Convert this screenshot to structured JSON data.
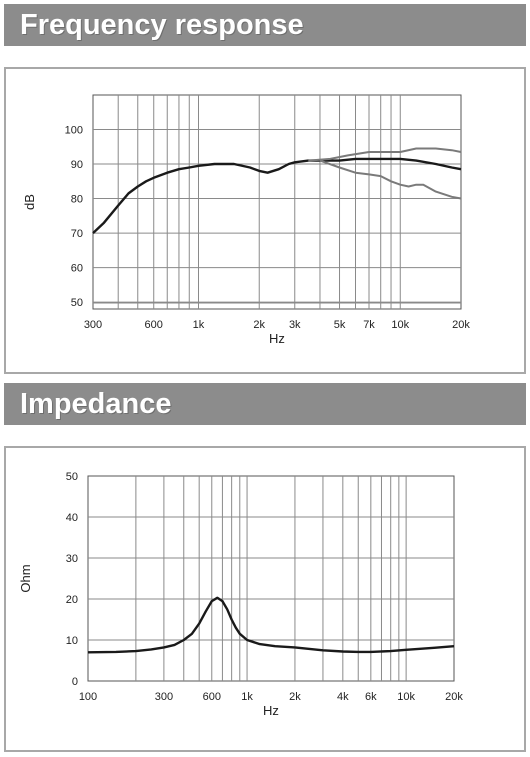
{
  "sections": {
    "frequency": {
      "title": "Frequency response"
    },
    "impedance": {
      "title": "Impedance"
    }
  },
  "chart_data": [
    {
      "type": "line",
      "title": "Frequency response",
      "xlabel": "Hz",
      "ylabel": "dB",
      "xscale": "log",
      "xlim": [
        300,
        20000
      ],
      "ylim": [
        48,
        110
      ],
      "grid": true,
      "legend": "none",
      "x_tick_labels": [
        {
          "value": 300,
          "label": "300"
        },
        {
          "value": 600,
          "label": "600"
        },
        {
          "value": 1000,
          "label": "1k"
        },
        {
          "value": 2000,
          "label": "2k"
        },
        {
          "value": 3000,
          "label": "3k"
        },
        {
          "value": 5000,
          "label": "5k"
        },
        {
          "value": 7000,
          "label": "7k"
        },
        {
          "value": 10000,
          "label": "10k"
        },
        {
          "value": 20000,
          "label": "20k"
        }
      ],
      "y_tick_labels": [
        {
          "value": 50,
          "label": "50"
        },
        {
          "value": 60,
          "label": "60"
        },
        {
          "value": 70,
          "label": "70"
        },
        {
          "value": 80,
          "label": "80"
        },
        {
          "value": 90,
          "label": "90"
        },
        {
          "value": 100,
          "label": "100"
        }
      ],
      "series": [
        {
          "color": "#1a1a1a",
          "x": [
            300,
            340,
            400,
            450,
            500,
            550,
            600,
            700,
            800,
            900,
            1000,
            1200,
            1500,
            1800,
            2000,
            2200,
            2500,
            2800,
            3000,
            3500,
            4000,
            5000,
            6000,
            7000,
            8000,
            10000,
            12000,
            15000,
            18000,
            20000
          ],
          "y": [
            70,
            73,
            78,
            81.5,
            83.5,
            85,
            86,
            87.5,
            88.5,
            89,
            89.5,
            90,
            90,
            89,
            88,
            87.5,
            88.5,
            90,
            90.5,
            91,
            91,
            91,
            91.5,
            91.5,
            91.5,
            91.5,
            91,
            90,
            89,
            88.5
          ]
        },
        {
          "color": "#7a7a7a",
          "x": [
            3500,
            4500,
            5500,
            7000,
            8000,
            10000,
            12000,
            15000,
            18000,
            20000
          ],
          "y": [
            91,
            91.5,
            92.5,
            93.5,
            93.5,
            93.5,
            94.5,
            94.5,
            94,
            93.5
          ]
        },
        {
          "color": "#7a7a7a",
          "x": [
            4000,
            5000,
            6000,
            7000,
            8000,
            9000,
            10000,
            11000,
            12000,
            13000,
            15000,
            18000,
            20000
          ],
          "y": [
            91,
            89,
            87.5,
            87,
            86.5,
            85,
            84,
            83.5,
            84,
            84,
            82,
            80.5,
            80
          ]
        }
      ]
    },
    {
      "type": "line",
      "title": "Impedance",
      "xlabel": "Hz",
      "ylabel": "Ohm",
      "xscale": "log",
      "xlim": [
        100,
        20000
      ],
      "ylim": [
        0,
        50
      ],
      "grid": true,
      "legend": "none",
      "x_tick_labels": [
        {
          "value": 100,
          "label": "100"
        },
        {
          "value": 300,
          "label": "300"
        },
        {
          "value": 600,
          "label": "600"
        },
        {
          "value": 1000,
          "label": "1k"
        },
        {
          "value": 2000,
          "label": "2k"
        },
        {
          "value": 4000,
          "label": "4k"
        },
        {
          "value": 6000,
          "label": "6k"
        },
        {
          "value": 10000,
          "label": "10k"
        },
        {
          "value": 20000,
          "label": "20k"
        }
      ],
      "y_tick_labels": [
        {
          "value": 0,
          "label": "0"
        },
        {
          "value": 10,
          "label": "10"
        },
        {
          "value": 20,
          "label": "20"
        },
        {
          "value": 30,
          "label": "30"
        },
        {
          "value": 40,
          "label": "40"
        },
        {
          "value": 50,
          "label": "50"
        }
      ],
      "series": [
        {
          "color": "#1a1a1a",
          "x": [
            100,
            150,
            200,
            250,
            300,
            350,
            400,
            450,
            500,
            550,
            600,
            650,
            700,
            750,
            800,
            850,
            900,
            1000,
            1200,
            1500,
            2000,
            3000,
            4000,
            5000,
            6000,
            8000,
            10000,
            15000,
            20000
          ],
          "y": [
            7,
            7.1,
            7.3,
            7.7,
            8.2,
            8.8,
            10,
            11.5,
            14,
            17,
            19.5,
            20.3,
            19.5,
            17.5,
            15,
            13,
            11.5,
            10,
            9,
            8.5,
            8.2,
            7.5,
            7.2,
            7.1,
            7.1,
            7.3,
            7.6,
            8.1,
            8.5
          ]
        }
      ]
    }
  ]
}
